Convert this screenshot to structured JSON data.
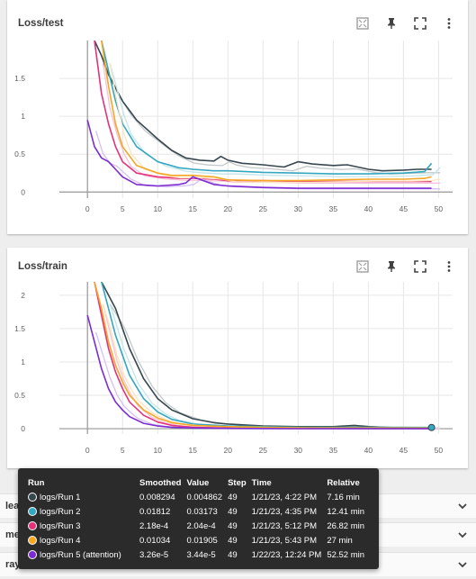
{
  "cards": [
    {
      "title": "Loss/test"
    },
    {
      "title": "Loss/train"
    }
  ],
  "toolbar_icons": [
    "fit-domain-icon",
    "pin-icon",
    "fullscreen-icon",
    "more-vert-icon"
  ],
  "accordions": [
    {
      "label": "lea"
    },
    {
      "label": "me"
    },
    {
      "label": "ray"
    }
  ],
  "tooltip": {
    "headers": [
      "Run",
      "Smoothed",
      "Value",
      "Step",
      "Time",
      "Relative"
    ],
    "rows": [
      {
        "run": "logs/Run 1",
        "color": "#37474f",
        "smoothed": "0.008294",
        "value": "0.004862",
        "step": "49",
        "time": "1/21/23, 4:22 PM",
        "relative": "7.16 min"
      },
      {
        "run": "logs/Run 2",
        "color": "#34a7c1",
        "smoothed": "0.01812",
        "value": "0.03173",
        "step": "49",
        "time": "1/21/23, 4:35 PM",
        "relative": "12.41 min"
      },
      {
        "run": "logs/Run 3",
        "color": "#e3327b",
        "smoothed": "2.18e-4",
        "value": "2.04e-4",
        "step": "49",
        "time": "1/21/23, 5:12 PM",
        "relative": "26.82 min"
      },
      {
        "run": "logs/Run 4",
        "color": "#f5a623",
        "smoothed": "0.01034",
        "value": "0.01905",
        "step": "49",
        "time": "1/21/23, 5:43 PM",
        "relative": "27 min"
      },
      {
        "run": "logs/Run 5 (attention)",
        "color": "#7b2bd1",
        "smoothed": "3.26e-5",
        "value": "3.44e-5",
        "step": "49",
        "time": "1/22/23, 12:24 PM",
        "relative": "52.52 min"
      }
    ]
  },
  "chart_data": [
    {
      "type": "line",
      "title": "Loss/test",
      "xlim": [
        -4,
        52
      ],
      "ylim": [
        -0.08,
        2.0
      ],
      "xticks": [
        0,
        5,
        10,
        15,
        20,
        25,
        30,
        35,
        40,
        45,
        50
      ],
      "yticks": [
        0,
        0.5,
        1,
        1.5
      ],
      "ytick_labels": [
        "0",
        "0.5",
        "1",
        "1.5"
      ],
      "series": [
        {
          "name": "logs/Run 1",
          "color": "#37474f",
          "x": [
            1,
            2,
            3,
            5,
            7,
            10,
            12,
            14,
            16,
            18,
            19,
            20,
            22,
            25,
            28,
            30,
            32,
            35,
            37,
            40,
            42,
            45,
            47,
            49
          ],
          "y": [
            2.0,
            1.8,
            1.55,
            1.2,
            0.95,
            0.7,
            0.55,
            0.45,
            0.42,
            0.41,
            0.47,
            0.42,
            0.38,
            0.36,
            0.33,
            0.4,
            0.37,
            0.35,
            0.36,
            0.3,
            0.28,
            0.29,
            0.3,
            0.3
          ]
        },
        {
          "name": "logs/Run 2",
          "color": "#34a7c1",
          "x": [
            2,
            3,
            4,
            5,
            7,
            10,
            13,
            15,
            18,
            20,
            25,
            30,
            35,
            40,
            45,
            48,
            49
          ],
          "y": [
            2.0,
            1.6,
            1.2,
            0.9,
            0.6,
            0.4,
            0.32,
            0.3,
            0.28,
            0.28,
            0.26,
            0.25,
            0.24,
            0.24,
            0.25,
            0.27,
            0.38
          ]
        },
        {
          "name": "logs/Run 3",
          "color": "#e3327b",
          "x": [
            1,
            2,
            3,
            4,
            5,
            7,
            10,
            13,
            15,
            18,
            20,
            25,
            30,
            35,
            40,
            45,
            49
          ],
          "y": [
            2.0,
            1.3,
            0.9,
            0.6,
            0.4,
            0.25,
            0.2,
            0.18,
            0.18,
            0.17,
            0.15,
            0.15,
            0.14,
            0.14,
            0.14,
            0.14,
            0.14
          ]
        },
        {
          "name": "logs/Run 4",
          "color": "#f5a623",
          "x": [
            2,
            3,
            4,
            5,
            7,
            10,
            12,
            15,
            18,
            20,
            25,
            30,
            35,
            40,
            45,
            48,
            49
          ],
          "y": [
            2.0,
            1.4,
            0.9,
            0.6,
            0.35,
            0.25,
            0.22,
            0.22,
            0.2,
            0.16,
            0.15,
            0.15,
            0.16,
            0.17,
            0.17,
            0.18,
            0.2
          ]
        },
        {
          "name": "logs/Run 5 (attention)",
          "color": "#7b2bd1",
          "x": [
            0,
            1,
            2,
            3,
            4,
            5,
            7,
            10,
            13,
            14,
            15,
            18,
            20,
            25,
            30,
            35,
            40,
            45,
            49
          ],
          "y": [
            0.95,
            0.6,
            0.45,
            0.4,
            0.3,
            0.2,
            0.1,
            0.08,
            0.1,
            0.12,
            0.2,
            0.1,
            0.08,
            0.06,
            0.05,
            0.05,
            0.05,
            0.05,
            0.05
          ]
        }
      ]
    },
    {
      "type": "line",
      "title": "Loss/train",
      "xlim": [
        -4,
        52
      ],
      "ylim": [
        -0.08,
        2.2
      ],
      "xticks": [
        0,
        5,
        10,
        15,
        20,
        25,
        30,
        35,
        40,
        45,
        50
      ],
      "yticks": [
        0,
        0.5,
        1,
        1.5,
        2
      ],
      "ytick_labels": [
        "0",
        "0.5",
        "1",
        "1.5",
        "2"
      ],
      "series": [
        {
          "name": "logs/Run 1",
          "color": "#37474f",
          "x": [
            2,
            4,
            6,
            8,
            10,
            12,
            15,
            18,
            20,
            25,
            30,
            35,
            38,
            40,
            45,
            49
          ],
          "y": [
            2.2,
            1.8,
            1.2,
            0.75,
            0.45,
            0.28,
            0.15,
            0.09,
            0.07,
            0.04,
            0.03,
            0.03,
            0.05,
            0.03,
            0.01,
            0.008
          ]
        },
        {
          "name": "logs/Run 2",
          "color": "#34a7c1",
          "x": [
            2,
            4,
            6,
            8,
            10,
            12,
            15,
            20,
            25,
            30,
            35,
            40,
            45,
            49
          ],
          "y": [
            2.2,
            1.4,
            0.8,
            0.45,
            0.25,
            0.14,
            0.07,
            0.04,
            0.03,
            0.02,
            0.02,
            0.02,
            0.02,
            0.018
          ]
        },
        {
          "name": "logs/Run 3",
          "color": "#e3327b",
          "x": [
            1,
            2,
            3,
            4,
            5,
            6,
            8,
            10,
            12,
            15,
            20,
            25,
            30,
            40,
            49
          ],
          "y": [
            2.2,
            1.7,
            1.2,
            0.85,
            0.6,
            0.4,
            0.2,
            0.1,
            0.05,
            0.02,
            0.01,
            0.005,
            0.002,
            0.001,
            0.0002
          ]
        },
        {
          "name": "logs/Run 4",
          "color": "#f5a623",
          "x": [
            1,
            2,
            3,
            4,
            5,
            6,
            8,
            10,
            12,
            15,
            20,
            25,
            30,
            40,
            49
          ],
          "y": [
            2.2,
            1.8,
            1.3,
            0.95,
            0.7,
            0.5,
            0.28,
            0.16,
            0.09,
            0.05,
            0.03,
            0.02,
            0.015,
            0.012,
            0.01
          ]
        },
        {
          "name": "logs/Run 5 (attention)",
          "color": "#7b2bd1",
          "x": [
            0,
            1,
            2,
            3,
            4,
            5,
            6,
            8,
            10,
            12,
            15,
            20,
            25,
            30,
            40,
            49
          ],
          "y": [
            1.7,
            1.3,
            0.9,
            0.6,
            0.4,
            0.28,
            0.18,
            0.08,
            0.04,
            0.02,
            0.01,
            0.005,
            0.002,
            0.001,
            0.0001,
            3e-05
          ]
        }
      ]
    }
  ]
}
